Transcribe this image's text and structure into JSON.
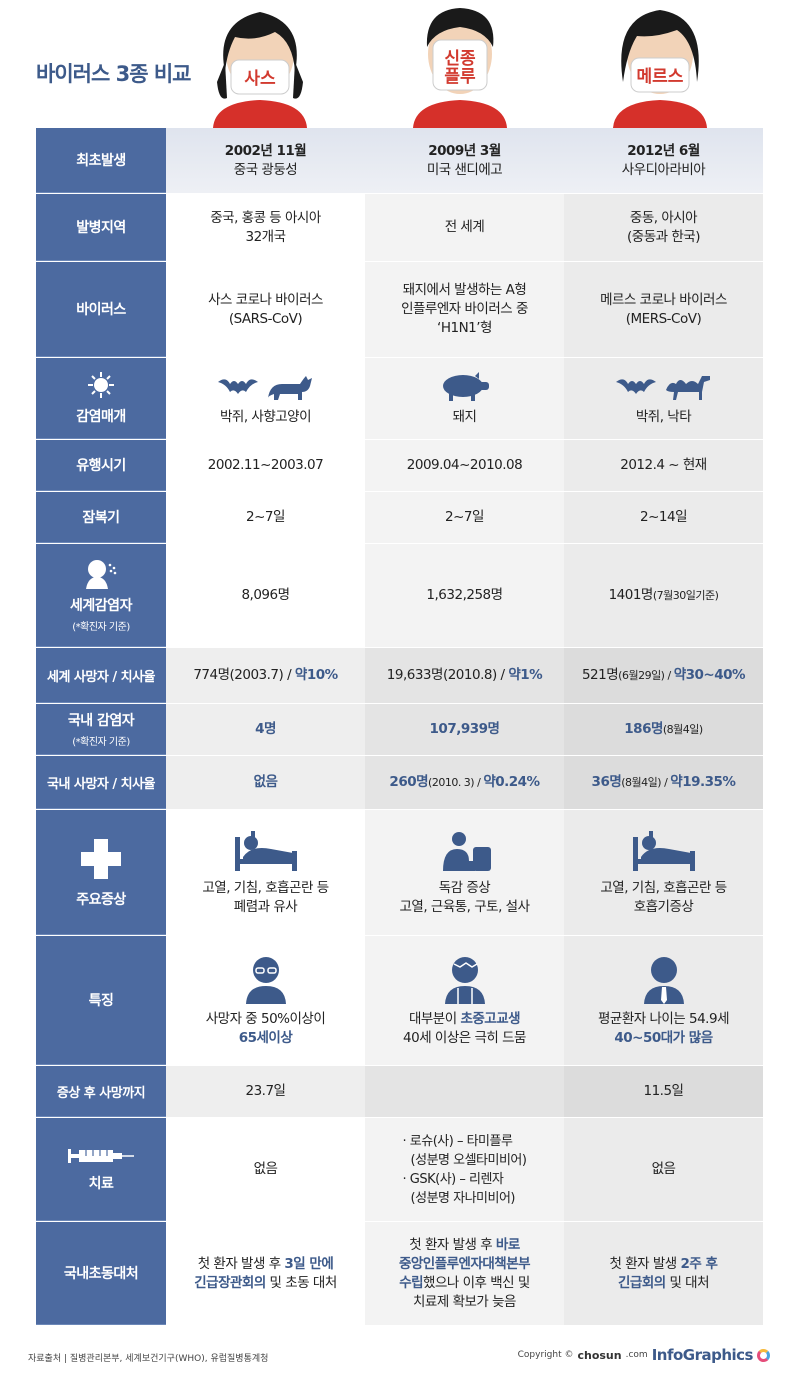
{
  "title": "바이러스 3종 비교",
  "masks": [
    "사스",
    "신종\n플루",
    "메르스"
  ],
  "columns": [
    "사스",
    "신종플루",
    "메르스"
  ],
  "rows": {
    "first": {
      "label": "최초발생",
      "c1a": "2002년 11월",
      "c1b": "중국 광둥성",
      "c2a": "2009년 3월",
      "c2b": "미국 샌디에고",
      "c3a": "2012년 6월",
      "c3b": "사우디아라비아"
    },
    "region": {
      "label": "발병지역",
      "c1a": "중국, 홍콩 등 아시아",
      "c1b": "32개국",
      "c2": "전 세계",
      "c3a": "중동, 아시아",
      "c3b": "(중동과 한국)"
    },
    "virus": {
      "label": "바이러스",
      "c1a": "사스 코로나 바이러스",
      "c1b": "(SARS-CoV)",
      "c2a": "돼지에서 발생하는 A형",
      "c2b": "인플루엔자 바이러스 중",
      "c2c": "‘H1N1’형",
      "c3a": "메르스 코로나 바이러스",
      "c3b": "(MERS-CoV)"
    },
    "vector": {
      "label": "감염매개",
      "c1": "박쥐, 사향고양이",
      "c2": "돼지",
      "c3": "박쥐, 낙타"
    },
    "epidemic": {
      "label": "유행시기",
      "c1": "2002.11~2003.07",
      "c2": "2009.04~2010.08",
      "c3": "2012.4 ~ 현재"
    },
    "incubation": {
      "label": "잠복기",
      "c1": "2~7일",
      "c2": "2~7일",
      "c3": "2~14일"
    },
    "world_cases": {
      "label": "세계감염자",
      "sub": "(*확진자 기준)",
      "c1": "8,096명",
      "c2": "1,632,258명",
      "c3a": "1401명",
      "c3b": "(7월30일기준)"
    },
    "world_deaths": {
      "label": "세계 사망자 / 치사율",
      "c1a": "774명",
      "c1b": "(2003.7) / ",
      "c1c": "약10%",
      "c2a": "19,633명",
      "c2b": "(2010.8) / ",
      "c2c": "약1%",
      "c3a": "521명",
      "c3b": "(6월29일) / ",
      "c3c": "약30~40%"
    },
    "kr_cases": {
      "label": "국내 감염자",
      "sub": "(*확진자 기준)",
      "c1": "4명",
      "c2": "107,939명",
      "c3a": "186명",
      "c3b": "(8월4일)"
    },
    "kr_deaths": {
      "label": "국내 사망자 / 치사율",
      "c1": "없음",
      "c2a": "260명",
      "c2b": "(2010. 3) / ",
      "c2c": "약0.24%",
      "c3a": "36명",
      "c3b": "(8월4일) / ",
      "c3c": "약19.35%"
    },
    "symptoms": {
      "label": "주요증상",
      "c1a": "고열, 기침, 호흡곤란 등",
      "c1b": "폐렴과 유사",
      "c2a": "독감 증상",
      "c2b": "고열, 근육통, 구토, 설사",
      "c3a": "고열, 기침, 호흡곤란 등",
      "c3b": "호흡기증상"
    },
    "features": {
      "label": "특징",
      "c1a": "사망자 중 50%이상이",
      "c1b": "65세이상",
      "c2a": "대부분이 ",
      "c2b": "초중고교생",
      "c2c": "40세 이상은 극히 드뭄",
      "c3a": "평균환자 나이는 54.9세",
      "c3b": "40~50대가 많음"
    },
    "to_death": {
      "label": "증상 후 사망까지",
      "c1": "23.7일",
      "c2": "",
      "c3": "11.5일"
    },
    "treatment": {
      "label": "치료",
      "c1": "없음",
      "c2a": "· 로슈(사) – 타미플루",
      "c2b": "(성분명 오셀타미비어)",
      "c2c": "· GSK(사) – 리렌자",
      "c2d": "(성분명 자나미비어)",
      "c3": "없음"
    },
    "response": {
      "label": "국내초동대처",
      "c1a": "첫 환자 발생 후 ",
      "c1b": "3일 만에",
      "c1c": "긴급장관회의",
      "c1d": " 및 초동 대처",
      "c2a": "첫 환자 발생 후 ",
      "c2b": "바로",
      "c2c": "중앙인플루엔자대책본부",
      "c2d": "수립",
      "c2e": "했으나 이후 백신 및",
      "c2f": "치료제 확보가 늦음",
      "c3a": "첫 환자 발생 ",
      "c3b": "2주 후",
      "c3c": "긴급회의",
      "c3d": " 및 대처"
    }
  },
  "footer": {
    "source": "자료출처 | 질병관리본부, 세계보건기구(WHO), 유럽질병통계청",
    "copyright": "Copyright ©",
    "chosun": "chosun",
    "com": ".com",
    "brand": "InfoGraphics"
  },
  "colors": {
    "header": "#4c6aa0",
    "accent": "#3d5a8a",
    "mask": "#d23a2f"
  }
}
